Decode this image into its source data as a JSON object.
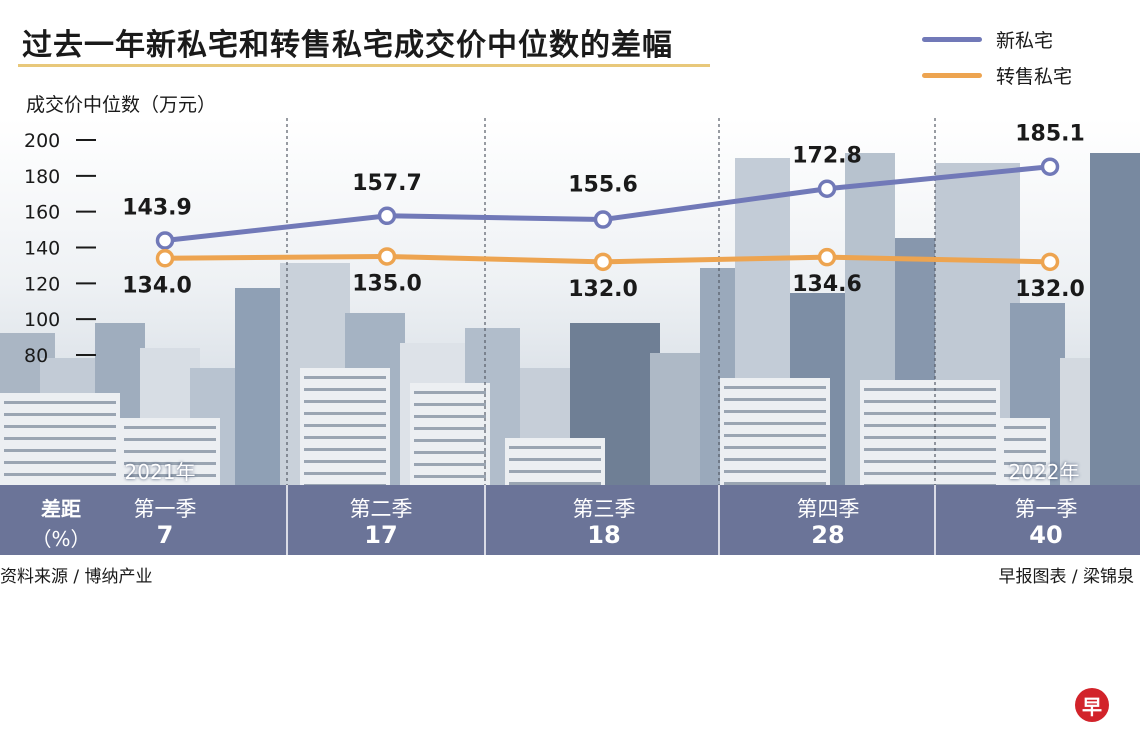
{
  "chart_data": {
    "type": "line",
    "title": "过去一年新私宅和转售私宅成交价中位数的差幅",
    "ylabel": "成交价中位数（万元）",
    "ylim": [
      80,
      200
    ],
    "yticks": [
      200,
      180,
      160,
      140,
      120,
      100,
      80
    ],
    "grid": false,
    "legend_position": "top-right",
    "categories": [
      "2021年第一季",
      "第二季",
      "第三季",
      "第四季",
      "2022年第一季"
    ],
    "series": [
      {
        "name": "新私宅",
        "color": "#7179b8",
        "values": [
          143.9,
          157.7,
          155.6,
          172.8,
          185.1
        ],
        "labels": [
          "143.9",
          "157.7",
          "155.6",
          "172.8",
          "185.1"
        ]
      },
      {
        "name": "转售私宅",
        "color": "#eda450",
        "values": [
          134.0,
          135.0,
          132.0,
          134.6,
          132.0
        ],
        "labels": [
          "134.0",
          "135.0",
          "132.0",
          "134.6",
          "132.0"
        ]
      }
    ]
  },
  "bottom_table": {
    "row_title": "差距",
    "row_unit": "（%）",
    "years": [
      "2021年",
      "2022年"
    ],
    "quarters": [
      "第一季",
      "第二季",
      "第三季",
      "第四季",
      "第一季"
    ],
    "gaps": [
      "7",
      "17",
      "18",
      "28",
      "40"
    ]
  },
  "footer": {
    "source_left": "资料来源 / 博纳产业",
    "source_right": "早报图表 / 梁锦泉",
    "logo_text": "早"
  }
}
